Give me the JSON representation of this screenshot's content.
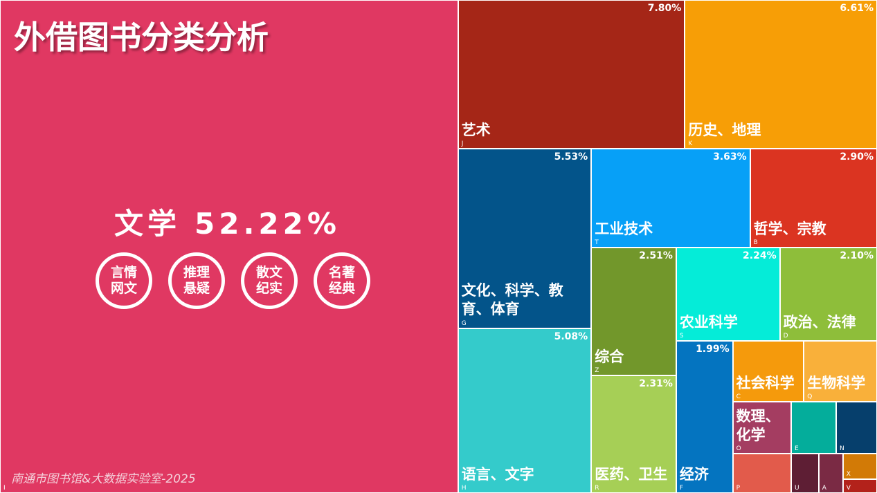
{
  "chart_data": {
    "type": "treemap",
    "title": "外借图书分类分析",
    "footer": "南通市图书馆&大数据实验室-2025",
    "tags": [
      [
        "言情",
        "网文"
      ],
      [
        "推理",
        "悬疑"
      ],
      [
        "散文",
        "纪实"
      ],
      [
        "名著",
        "经典"
      ]
    ],
    "categories": [
      "文学",
      "艺术",
      "历史、地理",
      "文化、科学、教育、体育",
      "语言、文字",
      "工业技术",
      "哲学、宗教",
      "综合",
      "医药、卫生",
      "农业科学",
      "政治、法律",
      "经济",
      "社会科学",
      "生物科学",
      "数理、化学",
      null,
      null,
      null,
      null,
      null,
      null,
      null
    ],
    "codes": [
      "I",
      "J",
      "K",
      "G",
      "H",
      "T",
      "B",
      "Z",
      "R",
      "S",
      "D",
      "F",
      "C",
      "Q",
      "O",
      "E",
      "N",
      "P",
      "U",
      "A",
      "X",
      "V"
    ],
    "values": [
      52.22,
      7.8,
      6.61,
      5.53,
      5.08,
      3.63,
      2.9,
      2.51,
      2.31,
      2.24,
      2.1,
      1.99,
      1.0,
      1.03,
      0.7,
      0.54,
      0.49,
      0.53,
      0.25,
      0.22,
      0.2,
      0.11
    ],
    "value_labels": [
      "52.22%",
      "7.80%",
      "6.61%",
      "5.53%",
      "5.08%",
      "3.63%",
      "2.90%",
      "2.51%",
      "2.31%",
      "2.24%",
      "2.10%",
      "1.99%",
      null,
      null,
      null,
      null,
      null,
      null,
      null,
      null,
      null,
      null
    ],
    "colors": [
      "#e03862",
      "#a52617",
      "#f79e06",
      "#03548a",
      "#34cbcb",
      "#07a0f7",
      "#db3421",
      "#72972b",
      "#a6cf56",
      "#05ecd8",
      "#8ebe3a",
      "#0474c0",
      "#f59a0c",
      "#f9b03a",
      "#a43d61",
      "#04ad9b",
      "#063f6c",
      "#e25b4b",
      "#5e1e34",
      "#7a2a44",
      "#d27a06",
      "#b3221b"
    ]
  }
}
